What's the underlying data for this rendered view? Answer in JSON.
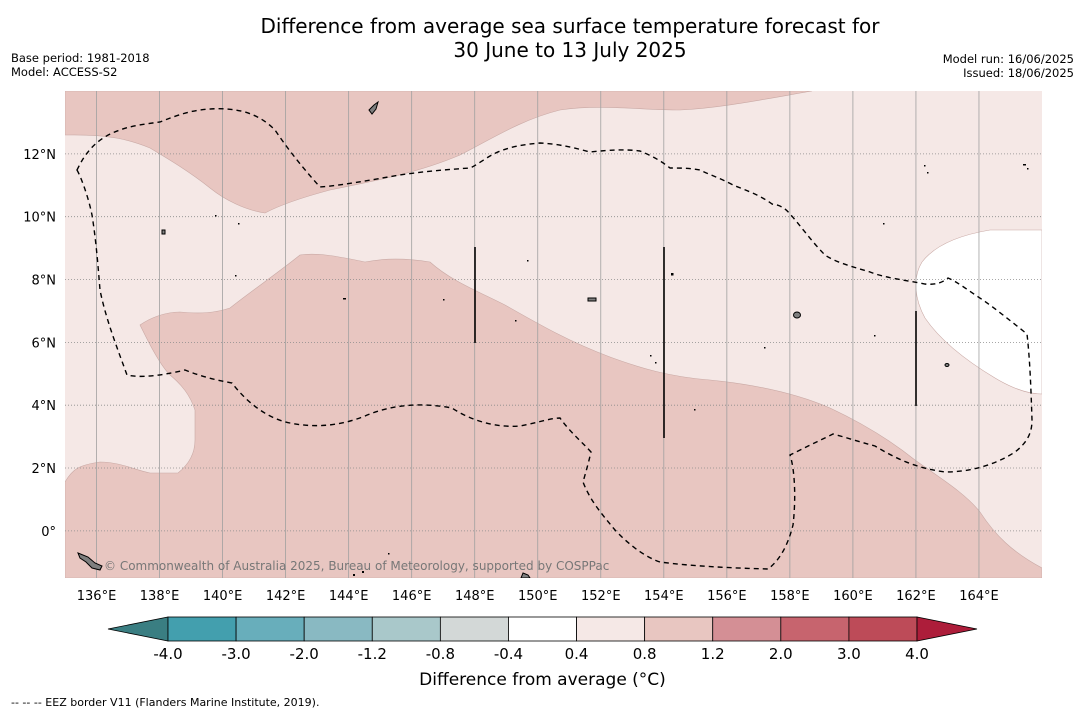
{
  "title": {
    "line1": "Difference from average sea surface temperature forecast for",
    "line2": "30 June to 13 July 2025"
  },
  "meta_left": {
    "base_period": "Base period: 1981-2018",
    "model": "Model: ACCESS-S2"
  },
  "meta_right": {
    "model_run": "Model run: 16/06/2025",
    "issued": "Issued: 18/06/2025"
  },
  "map": {
    "x_ticks": [
      "136°E",
      "138°E",
      "140°E",
      "142°E",
      "144°E",
      "146°E",
      "148°E",
      "150°E",
      "152°E",
      "154°E",
      "156°E",
      "158°E",
      "160°E",
      "162°E",
      "164°E"
    ],
    "y_ticks": [
      "12°N",
      "10°N",
      "8°N",
      "6°N",
      "4°N",
      "2°N",
      "0°"
    ],
    "lon_range": [
      135,
      166
    ],
    "lat_range": [
      -1.5,
      14
    ],
    "watermark": "© Commonwealth of Australia 2025, Bureau of Meteorology, supported by COSPPac",
    "colors": {
      "anomaly_0_4_to_0_8": "#f5e8e6",
      "anomaly_0_8_to_1_2": "#e8c6c1",
      "anomaly_neg0_4_to_0_4": "#ffffff"
    }
  },
  "colorbar": {
    "ticks": [
      "-4.0",
      "-3.0",
      "-2.0",
      "-1.2",
      "-0.8",
      "-0.4",
      "0.4",
      "0.8",
      "1.2",
      "2.0",
      "3.0",
      "4.0"
    ],
    "colors": [
      "#439fae",
      "#68aebb",
      "#89b9c2",
      "#a9c8ca",
      "#d3d8d7",
      "#ffffff",
      "#f5e8e6",
      "#e8c6c1",
      "#d48f95",
      "#c7646e",
      "#bd4b58"
    ],
    "low_extend_color": "#3a7e82",
    "high_extend_color": "#ad1d3a",
    "label": "Difference from average (°C)"
  },
  "footnote": "-- -- -- EEZ border V11 (Flanders Marine Institute, 2019)."
}
